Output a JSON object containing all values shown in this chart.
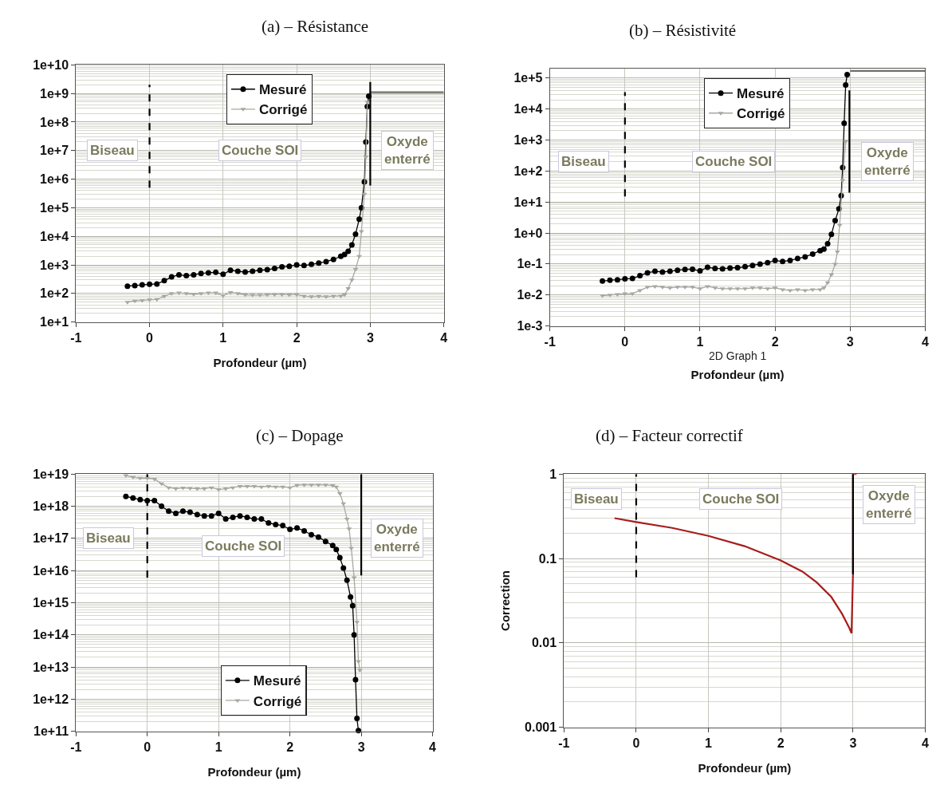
{
  "chart_data": [
    {
      "type": "line",
      "title": "(a) – Résistance",
      "xlabel": "Profondeur (µm)",
      "log": "y",
      "grid": true,
      "legend": "top",
      "xlim": [
        -1,
        4
      ],
      "xticks": [
        -1,
        0,
        1,
        2,
        3,
        4
      ],
      "ylim": [
        10,
        10000000000.0
      ],
      "yticks": [
        {
          "value": 10,
          "label": "1e+1"
        },
        {
          "value": 100,
          "label": "1e+2"
        },
        {
          "value": 1000,
          "label": "1e+3"
        },
        {
          "value": 10000,
          "label": "1e+4"
        },
        {
          "value": 100000,
          "label": "1e+5"
        },
        {
          "value": 1000000.0,
          "label": "1e+6"
        },
        {
          "value": 10000000.0,
          "label": "1e+7"
        },
        {
          "value": 100000000.0,
          "label": "1e+8"
        },
        {
          "value": 1000000000.0,
          "label": "1e+9"
        },
        {
          "value": 10000000000.0,
          "label": "1e+10"
        }
      ],
      "series": [
        {
          "name": "Mesuré",
          "color": "#000000",
          "marker": "circle",
          "x": [
            -0.3,
            -0.2,
            -0.1,
            0,
            0.1,
            0.2,
            0.3,
            0.4,
            0.5,
            0.6,
            0.7,
            0.8,
            0.9,
            1.0,
            1.1,
            1.2,
            1.3,
            1.4,
            1.5,
            1.6,
            1.7,
            1.8,
            1.9,
            2.0,
            2.1,
            2.2,
            2.3,
            2.4,
            2.5,
            2.6,
            2.65,
            2.7,
            2.75,
            2.8,
            2.85,
            2.88,
            2.92,
            2.94,
            2.96,
            2.98
          ],
          "values": [
            180,
            190,
            200,
            210,
            215,
            280,
            380,
            450,
            420,
            450,
            500,
            530,
            550,
            470,
            650,
            600,
            560,
            600,
            650,
            680,
            750,
            850,
            900,
            1000,
            950,
            1050,
            1150,
            1300,
            1550,
            2000,
            2300,
            3000,
            5000,
            12000,
            40000,
            100000,
            800000,
            20000000.0,
            350000000.0,
            800000000.0
          ]
        },
        {
          "name": "Corrigé",
          "color": "#a8a8a0",
          "marker": "triangle",
          "x": [
            -0.3,
            -0.2,
            -0.1,
            0,
            0.1,
            0.2,
            0.3,
            0.4,
            0.5,
            0.6,
            0.7,
            0.8,
            0.9,
            1.0,
            1.1,
            1.2,
            1.3,
            1.4,
            1.5,
            1.6,
            1.7,
            1.8,
            1.9,
            2.0,
            2.1,
            2.2,
            2.3,
            2.4,
            2.5,
            2.6,
            2.65,
            2.7,
            2.75,
            2.8,
            2.85,
            2.88,
            2.92,
            2.94,
            2.96
          ],
          "values": [
            50,
            55,
            57,
            60,
            62,
            80,
            100,
            105,
            100,
            95,
            100,
            105,
            105,
            85,
            110,
            100,
            90,
            88,
            88,
            90,
            92,
            92,
            90,
            92,
            80,
            78,
            80,
            78,
            80,
            82,
            90,
            150,
            300,
            700,
            2000,
            15000,
            300000,
            6000000.0,
            500000000.0
          ]
        },
        {
          "color": "#707068",
          "marker": "none",
          "x": [
            3.0,
            4.0
          ],
          "values": [
            1100000000.0,
            1100000000.0
          ]
        },
        {
          "color": "#000000",
          "marker": "none",
          "line_style": "dashed",
          "x": [
            0,
            0
          ],
          "values": [
            500000,
            2000000000.0
          ]
        },
        {
          "color": "#000000",
          "marker": "none",
          "x": [
            3.0,
            3.0
          ],
          "values": [
            600000,
            2500000000.0
          ]
        }
      ],
      "annotations": [
        "Biseau",
        "Couche SOI",
        "Oxyde\nenterré"
      ]
    },
    {
      "type": "line",
      "title": "(b) – Résistivité",
      "xlabel": "Profondeur (µm)",
      "log": "y",
      "grid": true,
      "legend": "top",
      "xlim": [
        -1,
        4
      ],
      "xticks": [
        -1,
        0,
        1,
        2,
        3,
        4
      ],
      "ylim": [
        0.001,
        200000
      ],
      "yticks": [
        {
          "value": 0.001,
          "label": "1e-3"
        },
        {
          "value": 0.01,
          "label": "1e-2"
        },
        {
          "value": 0.1,
          "label": "1e-1"
        },
        {
          "value": 1,
          "label": "1e+0"
        },
        {
          "value": 10,
          "label": "1e+1"
        },
        {
          "value": 100,
          "label": "1e+2"
        },
        {
          "value": 1000,
          "label": "1e+3"
        },
        {
          "value": 10000,
          "label": "1e+4"
        },
        {
          "value": 100000,
          "label": "1e+5"
        }
      ],
      "series": [
        {
          "name": "Mesuré",
          "color": "#000000",
          "marker": "circle",
          "x": [
            -0.3,
            -0.2,
            -0.1,
            0,
            0.1,
            0.2,
            0.3,
            0.4,
            0.5,
            0.6,
            0.7,
            0.8,
            0.9,
            1.0,
            1.1,
            1.2,
            1.3,
            1.4,
            1.5,
            1.6,
            1.7,
            1.8,
            1.9,
            2.0,
            2.1,
            2.2,
            2.3,
            2.4,
            2.5,
            2.6,
            2.65,
            2.7,
            2.75,
            2.8,
            2.85,
            2.88,
            2.9,
            2.92,
            2.94,
            2.96
          ],
          "values": [
            0.028,
            0.03,
            0.031,
            0.033,
            0.034,
            0.042,
            0.052,
            0.058,
            0.055,
            0.058,
            0.063,
            0.067,
            0.068,
            0.06,
            0.078,
            0.072,
            0.07,
            0.074,
            0.076,
            0.082,
            0.09,
            0.1,
            0.11,
            0.13,
            0.12,
            0.13,
            0.15,
            0.17,
            0.21,
            0.27,
            0.3,
            0.45,
            0.9,
            2.5,
            6,
            16,
            130,
            3500,
            60000,
            130000
          ]
        },
        {
          "name": "Corrigé",
          "color": "#a8a8a0",
          "marker": "triangle",
          "x": [
            -0.3,
            -0.2,
            -0.1,
            0,
            0.1,
            0.2,
            0.3,
            0.4,
            0.5,
            0.6,
            0.7,
            0.8,
            0.9,
            1.0,
            1.1,
            1.2,
            1.3,
            1.4,
            1.5,
            1.6,
            1.7,
            1.8,
            1.9,
            2.0,
            2.1,
            2.2,
            2.3,
            2.4,
            2.5,
            2.6,
            2.65,
            2.7,
            2.75,
            2.8,
            2.83,
            2.86,
            2.9,
            2.94
          ],
          "values": [
            0.0095,
            0.01,
            0.0105,
            0.011,
            0.011,
            0.014,
            0.018,
            0.019,
            0.018,
            0.017,
            0.018,
            0.018,
            0.018,
            0.016,
            0.019,
            0.017,
            0.016,
            0.016,
            0.016,
            0.016,
            0.017,
            0.017,
            0.016,
            0.017,
            0.015,
            0.014,
            0.015,
            0.014,
            0.015,
            0.015,
            0.017,
            0.025,
            0.045,
            0.1,
            0.25,
            1.8,
            50,
            900
          ]
        },
        {
          "color": "#707068",
          "marker": "none",
          "x": [
            3.0,
            4.0
          ],
          "values": [
            170000,
            170000
          ]
        },
        {
          "color": "#000000",
          "marker": "none",
          "line_style": "dashed",
          "x": [
            0,
            0
          ],
          "values": [
            15,
            35000
          ]
        },
        {
          "color": "#000000",
          "marker": "none",
          "x": [
            2.99,
            2.99
          ],
          "values": [
            20,
            40000
          ]
        }
      ],
      "annotations": [
        "Biseau",
        "Couche SOI",
        "Oxyde\nenterré",
        "2D Graph 1"
      ]
    },
    {
      "type": "line",
      "title": "(c) – Dopage",
      "xlabel": "Profondeur (µm)",
      "log": "y",
      "grid": true,
      "legend": "bottom",
      "xlim": [
        -1,
        4
      ],
      "xticks": [
        -1,
        0,
        1,
        2,
        3,
        4
      ],
      "ylim": [
        100000000000.0,
        1e+19
      ],
      "yticks": [
        {
          "value": 100000000000.0,
          "label": "1e+11"
        },
        {
          "value": 1000000000000.0,
          "label": "1e+12"
        },
        {
          "value": 10000000000000.0,
          "label": "1e+13"
        },
        {
          "value": 100000000000000.0,
          "label": "1e+14"
        },
        {
          "value": 1000000000000000.0,
          "label": "1e+15"
        },
        {
          "value": 1e+16,
          "label": "1e+16"
        },
        {
          "value": 1e+17,
          "label": "1e+17"
        },
        {
          "value": 1e+18,
          "label": "1e+18"
        },
        {
          "value": 1e+19,
          "label": "1e+19"
        }
      ],
      "series": [
        {
          "name": "Mesuré",
          "color": "#000000",
          "marker": "circle",
          "x": [
            -0.3,
            -0.2,
            -0.1,
            0,
            0.1,
            0.2,
            0.3,
            0.4,
            0.5,
            0.6,
            0.7,
            0.8,
            0.9,
            1.0,
            1.1,
            1.2,
            1.3,
            1.4,
            1.5,
            1.6,
            1.7,
            1.8,
            1.9,
            2.0,
            2.1,
            2.2,
            2.3,
            2.4,
            2.5,
            2.6,
            2.65,
            2.7,
            2.75,
            2.8,
            2.85,
            2.88,
            2.9,
            2.92,
            2.94,
            2.96
          ],
          "values": [
            2e+18,
            1.8e+18,
            1.6e+18,
            1.5e+18,
            1.5e+18,
            1e+18,
            7e+17,
            6e+17,
            7e+17,
            6.5e+17,
            5.5e+17,
            5e+17,
            5e+17,
            6e+17,
            4e+17,
            4.5e+17,
            5e+17,
            4.5e+17,
            4e+17,
            4e+17,
            3e+17,
            2.7e+17,
            2.5e+17,
            1.9e+17,
            2.1e+17,
            1.7e+17,
            1.3e+17,
            1.1e+17,
            8e+16,
            6e+16,
            4.5e+16,
            2.5e+16,
            1.2e+16,
            5000000000000000.0,
            1500000000000000.0,
            800000000000000.0,
            100000000000000.0,
            4000000000000.0,
            250000000000.0,
            105000000000.0
          ]
        },
        {
          "name": "Corrigé",
          "color": "#a8a8a0",
          "marker": "triangle",
          "x": [
            -0.3,
            -0.2,
            -0.1,
            0,
            0.1,
            0.2,
            0.3,
            0.4,
            0.5,
            0.6,
            0.7,
            0.8,
            0.9,
            1.0,
            1.1,
            1.2,
            1.3,
            1.4,
            1.5,
            1.6,
            1.7,
            1.8,
            1.9,
            2.0,
            2.1,
            2.2,
            2.3,
            2.4,
            2.5,
            2.6,
            2.65,
            2.7,
            2.75,
            2.8,
            2.83,
            2.86,
            2.9,
            2.94,
            2.96,
            2.98
          ],
          "values": [
            9e+18,
            8e+18,
            7.5e+18,
            7.5e+18,
            7e+18,
            5e+18,
            3.8e+18,
            3.5e+18,
            3.7e+18,
            3.6e+18,
            3.5e+18,
            3.5e+18,
            3.8e+18,
            3.3e+18,
            3.5e+18,
            3.8e+18,
            4.2e+18,
            4.2e+18,
            4.2e+18,
            4e+18,
            4.2e+18,
            4e+18,
            4e+18,
            3.8e+18,
            4.5e+18,
            4.6e+18,
            4.6e+18,
            4.6e+18,
            4.6e+18,
            4.4e+18,
            4e+18,
            2.5e+18,
            1.2e+18,
            4e+17,
            2e+17,
            5e+16,
            6000000000000000.0,
            250000000000000.0,
            15000000000000.0,
            8000000000000.0
          ]
        },
        {
          "color": "#000000",
          "marker": "none",
          "line_style": "dashed",
          "x": [
            0,
            0
          ],
          "values": [
            6000000000000000.0,
            1e+19
          ]
        },
        {
          "color": "#000000",
          "marker": "none",
          "x": [
            3.0,
            3.0
          ],
          "values": [
            7000000000000000.0,
            1e+19
          ]
        }
      ],
      "annotations": [
        "Biseau",
        "Couche SOI",
        "Oxyde\nenterré"
      ]
    },
    {
      "type": "line",
      "title": "(d) – Facteur correctif",
      "xlabel": "Profondeur (µm)",
      "ylabel": "Correction",
      "log": "y",
      "grid": true,
      "xlim": [
        -1,
        4
      ],
      "xticks": [
        -1,
        0,
        1,
        2,
        3,
        4
      ],
      "ylim": [
        0.001,
        1
      ],
      "yticks": [
        0.001,
        0.01,
        0.1,
        1
      ],
      "series": [
        {
          "color": "#a81c1c",
          "marker": "none",
          "x": [
            -0.3,
            0,
            0.5,
            1,
            1.5,
            2,
            2.3,
            2.5,
            2.7,
            2.85,
            2.95,
            2.98,
            3.0,
            3.0,
            3.05
          ],
          "values": [
            0.3,
            0.27,
            0.23,
            0.185,
            0.14,
            0.095,
            0.07,
            0.052,
            0.035,
            0.022,
            0.015,
            0.013,
            0.065,
            1,
            1
          ]
        },
        {
          "color": "#000000",
          "marker": "none",
          "line_style": "dashed",
          "x": [
            0,
            0
          ],
          "values": [
            0.06,
            1
          ]
        },
        {
          "color": "#000000",
          "marker": "none",
          "x": [
            3.0,
            3.0
          ],
          "values": [
            0.065,
            1
          ]
        }
      ],
      "annotations": [
        "Biseau",
        "Couche SOI",
        "Oxyde\nenterré"
      ]
    }
  ]
}
